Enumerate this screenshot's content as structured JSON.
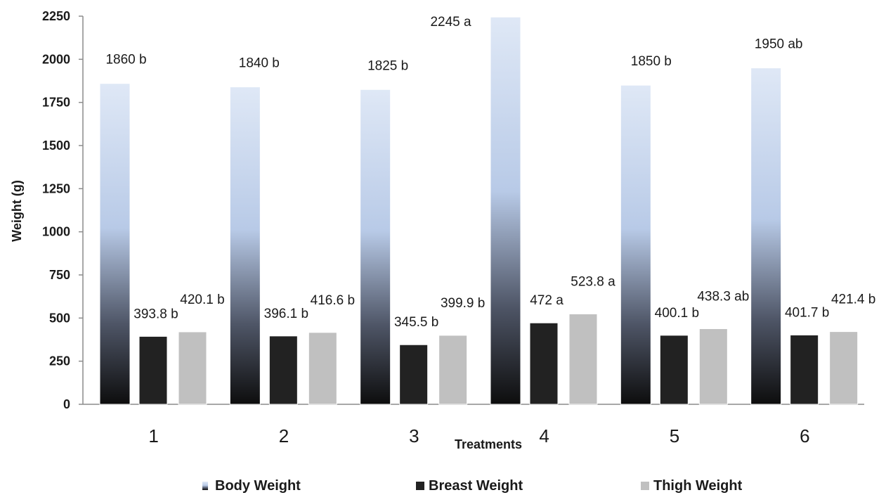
{
  "chart_data": {
    "type": "bar",
    "title": "",
    "xlabel": "Treatments",
    "ylabel": "Weight (g)",
    "categories": [
      "1",
      "2",
      "3",
      "4",
      "5",
      "6"
    ],
    "ylim": [
      0,
      2250
    ],
    "yticks": [
      0,
      250,
      500,
      750,
      1000,
      1250,
      1500,
      1750,
      2000,
      2250
    ],
    "grid": false,
    "legend_position": "bottom",
    "series": [
      {
        "name": "Body Weight",
        "values": [
          1860,
          1840,
          1825,
          2245,
          1850,
          1950
        ],
        "labels": [
          "1860 b",
          "1840 b",
          "1825 b",
          "2245 a",
          "1850 b",
          "1950 ab"
        ],
        "color_top": "#dce6f5",
        "color_mid": "#b7c9e6",
        "color_bottom": "#111111"
      },
      {
        "name": "Breast Weight",
        "values": [
          393.8,
          396.1,
          345.5,
          472,
          400.1,
          401.7
        ],
        "labels": [
          "393.8 b",
          "396.1 b",
          "345.5 b",
          "472 a",
          "400.1 b",
          "401.7 b"
        ],
        "color": "#222222"
      },
      {
        "name": "Thigh Weight",
        "values": [
          420.1,
          416.6,
          399.9,
          523.8,
          438.3,
          421.4
        ],
        "labels": [
          "420.1 b",
          "416.6 b",
          "399.9 b",
          "523.8 a",
          "438.3 ab",
          "421.4 b"
        ],
        "color": "#c0c0c0"
      }
    ]
  }
}
